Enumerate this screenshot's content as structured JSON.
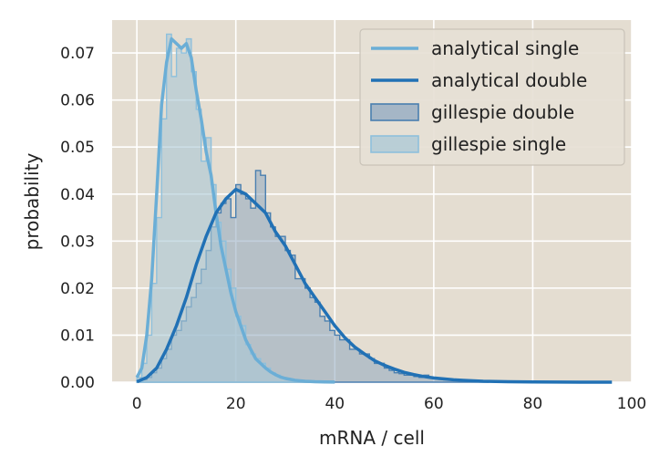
{
  "chart_data": {
    "type": "histogram",
    "xlabel": "mRNA / cell",
    "ylabel": "probability",
    "xlim": [
      -5,
      100
    ],
    "ylim": [
      0,
      0.077
    ],
    "xticks": [
      0,
      20,
      40,
      60,
      80,
      100
    ],
    "yticks": [
      0.0,
      0.01,
      0.02,
      0.03,
      0.04,
      0.05,
      0.06,
      0.07
    ],
    "ytick_labels": [
      "0.00",
      "0.01",
      "0.02",
      "0.03",
      "0.04",
      "0.05",
      "0.06",
      "0.07"
    ],
    "grid": true,
    "background": "#e4ddd1",
    "legend_position": "top-right",
    "legend": [
      "analytical single",
      "analytical double",
      "gillespie double",
      "gillespie single"
    ],
    "colors": {
      "analytical_single": "#6baed6",
      "analytical_double": "#2171b5",
      "gillespie_double_fill": "#8fa8c0",
      "gillespie_double_edge": "#4a7fb0",
      "gillespie_single_fill": "#aac8d6",
      "gillespie_single_edge": "#8ec0dc"
    },
    "series": [
      {
        "name": "gillespie single",
        "kind": "hist",
        "bin_width": 1,
        "x": [
          0,
          1,
          2,
          3,
          4,
          5,
          6,
          7,
          8,
          9,
          10,
          11,
          12,
          13,
          14,
          15,
          16,
          17,
          18,
          19,
          20,
          21,
          22,
          23,
          24,
          25,
          26,
          27,
          28,
          29,
          30,
          31,
          32,
          33,
          34
        ],
        "values": [
          0.001,
          0.004,
          0.01,
          0.021,
          0.035,
          0.056,
          0.074,
          0.065,
          0.071,
          0.07,
          0.073,
          0.066,
          0.058,
          0.047,
          0.052,
          0.042,
          0.034,
          0.03,
          0.024,
          0.02,
          0.014,
          0.012,
          0.008,
          0.006,
          0.005,
          0.004,
          0.003,
          0.002,
          0.0015,
          0.001,
          0.0008,
          0.0005,
          0.0003,
          0.0002,
          0.0001
        ]
      },
      {
        "name": "gillespie double",
        "kind": "hist",
        "bin_width": 1,
        "x": [
          0,
          1,
          2,
          3,
          4,
          5,
          6,
          7,
          8,
          9,
          10,
          11,
          12,
          13,
          14,
          15,
          16,
          17,
          18,
          19,
          20,
          21,
          22,
          23,
          24,
          25,
          26,
          27,
          28,
          29,
          30,
          31,
          32,
          33,
          34,
          35,
          36,
          37,
          38,
          39,
          40,
          41,
          42,
          43,
          44,
          45,
          46,
          47,
          48,
          49,
          50,
          51,
          52,
          53,
          54,
          55,
          56,
          57,
          58,
          59,
          60,
          61,
          62,
          63,
          64,
          65,
          66,
          67,
          68,
          69,
          70
        ],
        "values": [
          0.0002,
          0.0005,
          0.001,
          0.002,
          0.003,
          0.005,
          0.007,
          0.01,
          0.011,
          0.013,
          0.016,
          0.018,
          0.021,
          0.024,
          0.028,
          0.033,
          0.036,
          0.038,
          0.039,
          0.035,
          0.042,
          0.04,
          0.039,
          0.037,
          0.045,
          0.044,
          0.036,
          0.033,
          0.031,
          0.031,
          0.028,
          0.027,
          0.022,
          0.022,
          0.02,
          0.018,
          0.017,
          0.014,
          0.013,
          0.011,
          0.01,
          0.009,
          0.009,
          0.007,
          0.007,
          0.006,
          0.006,
          0.005,
          0.004,
          0.004,
          0.003,
          0.0025,
          0.002,
          0.0018,
          0.0015,
          0.0015,
          0.0012,
          0.001,
          0.0015,
          0.001,
          0.0008,
          0.0006,
          0.0005,
          0.0005,
          0.0004,
          0.0003,
          0.0003,
          0.0002,
          0.0002,
          0.0002,
          0.0001
        ]
      },
      {
        "name": "analytical single",
        "kind": "line",
        "x": [
          0,
          1,
          2,
          3,
          4,
          5,
          6,
          7,
          8,
          9,
          10,
          11,
          12,
          13,
          14,
          15,
          16,
          17,
          18,
          19,
          20,
          21,
          22,
          23,
          24,
          25,
          26,
          27,
          28,
          29,
          30,
          32,
          34,
          36,
          38,
          40
        ],
        "values": [
          0.001,
          0.003,
          0.01,
          0.022,
          0.04,
          0.059,
          0.068,
          0.073,
          0.072,
          0.071,
          0.072,
          0.069,
          0.062,
          0.056,
          0.049,
          0.044,
          0.036,
          0.029,
          0.024,
          0.019,
          0.015,
          0.012,
          0.009,
          0.007,
          0.005,
          0.004,
          0.003,
          0.0022,
          0.0016,
          0.0011,
          0.0008,
          0.0004,
          0.0002,
          0.0001,
          5e-05,
          2e-05
        ]
      },
      {
        "name": "analytical double",
        "kind": "line",
        "x": [
          0,
          2,
          4,
          6,
          8,
          10,
          12,
          14,
          16,
          18,
          20,
          22,
          24,
          26,
          28,
          30,
          32,
          34,
          36,
          38,
          40,
          42,
          44,
          46,
          48,
          50,
          52,
          54,
          56,
          58,
          60,
          62,
          64,
          66,
          68,
          70,
          75,
          80,
          85,
          90,
          96
        ],
        "values": [
          0.0001,
          0.001,
          0.003,
          0.007,
          0.012,
          0.018,
          0.025,
          0.031,
          0.036,
          0.039,
          0.041,
          0.04,
          0.038,
          0.036,
          0.032,
          0.029,
          0.025,
          0.021,
          0.018,
          0.015,
          0.012,
          0.0095,
          0.0075,
          0.006,
          0.0046,
          0.0036,
          0.0028,
          0.0021,
          0.0016,
          0.0012,
          0.0009,
          0.0007,
          0.0005,
          0.0004,
          0.0003,
          0.0002,
          0.0001,
          5e-05,
          2e-05,
          1e-05,
          0.0
        ]
      }
    ]
  }
}
